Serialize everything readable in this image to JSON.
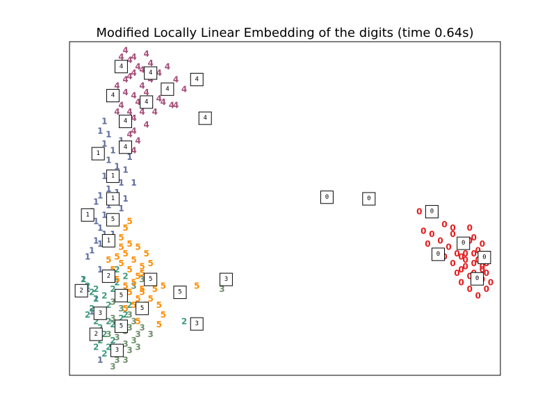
{
  "chart_data": {
    "type": "scatter",
    "title": "Modified Locally Linear Embedding of the digits (time 0.64s)",
    "xlabel": "",
    "ylabel": "",
    "xlim": [
      0,
      1
    ],
    "ylim": [
      0,
      1
    ],
    "grid": false,
    "legend": "none",
    "colors": {
      "0": "#e41a1c",
      "1": "#5b6b9e",
      "2": "#3c9a7a",
      "3": "#6e8f6a",
      "4": "#a6507a",
      "5": "#ff8c00"
    },
    "series": [
      {
        "label": "0",
        "points": [
          [
            0.82,
            0.49
          ],
          [
            0.86,
            0.48
          ],
          [
            0.88,
            0.45
          ],
          [
            0.9,
            0.42
          ],
          [
            0.92,
            0.4
          ],
          [
            0.93,
            0.38
          ],
          [
            0.94,
            0.4
          ],
          [
            0.95,
            0.36
          ],
          [
            0.96,
            0.34
          ],
          [
            0.97,
            0.32
          ],
          [
            0.98,
            0.3
          ],
          [
            0.97,
            0.28
          ],
          [
            0.95,
            0.3
          ],
          [
            0.93,
            0.34
          ],
          [
            0.91,
            0.36
          ],
          [
            0.89,
            0.38
          ],
          [
            0.87,
            0.4
          ],
          [
            0.85,
            0.42
          ],
          [
            0.88,
            0.35
          ],
          [
            0.9,
            0.33
          ],
          [
            0.92,
            0.31
          ],
          [
            0.94,
            0.29
          ],
          [
            0.96,
            0.27
          ],
          [
            0.98,
            0.25
          ],
          [
            0.99,
            0.27
          ],
          [
            0.96,
            0.23
          ],
          [
            0.94,
            0.25
          ],
          [
            0.92,
            0.27
          ],
          [
            0.91,
            0.3
          ],
          [
            0.93,
            0.36
          ],
          [
            0.95,
            0.41
          ],
          [
            0.97,
            0.39
          ],
          [
            0.94,
            0.44
          ],
          [
            0.9,
            0.44
          ],
          [
            0.86,
            0.36
          ],
          [
            0.84,
            0.39
          ],
          [
            0.83,
            0.43
          ],
          [
            0.95,
            0.33
          ],
          [
            0.97,
            0.31
          ],
          [
            0.93,
            0.32
          ],
          [
            0.92,
            0.35
          ],
          [
            0.96,
            0.37
          ],
          [
            0.98,
            0.33
          ]
        ]
      },
      {
        "label": "1",
        "points": [
          [
            0.07,
            0.77
          ],
          [
            0.06,
            0.74
          ],
          [
            0.08,
            0.73
          ],
          [
            0.07,
            0.7
          ],
          [
            0.09,
            0.68
          ],
          [
            0.08,
            0.65
          ],
          [
            0.1,
            0.63
          ],
          [
            0.09,
            0.6
          ],
          [
            0.11,
            0.58
          ],
          [
            0.1,
            0.55
          ],
          [
            0.12,
            0.53
          ],
          [
            0.11,
            0.5
          ],
          [
            0.09,
            0.52
          ],
          [
            0.08,
            0.56
          ],
          [
            0.07,
            0.6
          ],
          [
            0.06,
            0.54
          ],
          [
            0.05,
            0.52
          ],
          [
            0.04,
            0.49
          ],
          [
            0.05,
            0.46
          ],
          [
            0.06,
            0.44
          ],
          [
            0.07,
            0.42
          ],
          [
            0.05,
            0.4
          ],
          [
            0.04,
            0.37
          ],
          [
            0.03,
            0.35
          ],
          [
            0.02,
            0.28
          ],
          [
            0.03,
            0.25
          ],
          [
            0.05,
            0.22
          ],
          [
            0.04,
            0.18
          ],
          [
            0.06,
            0.03
          ],
          [
            0.09,
            0.42
          ],
          [
            0.1,
            0.47
          ],
          [
            0.13,
            0.66
          ],
          [
            0.11,
            0.71
          ],
          [
            0.08,
            0.51
          ],
          [
            0.07,
            0.48
          ],
          [
            0.06,
            0.39
          ],
          [
            0.12,
            0.62
          ],
          [
            0.14,
            0.58
          ],
          [
            0.06,
            0.31
          ]
        ]
      },
      {
        "label": "2",
        "points": [
          [
            0.02,
            0.28
          ],
          [
            0.03,
            0.26
          ],
          [
            0.04,
            0.24
          ],
          [
            0.05,
            0.22
          ],
          [
            0.04,
            0.19
          ],
          [
            0.03,
            0.17
          ],
          [
            0.05,
            0.15
          ],
          [
            0.06,
            0.13
          ],
          [
            0.07,
            0.11
          ],
          [
            0.06,
            0.09
          ],
          [
            0.08,
            0.07
          ],
          [
            0.07,
            0.05
          ],
          [
            0.05,
            0.07
          ],
          [
            0.04,
            0.12
          ],
          [
            0.06,
            0.18
          ],
          [
            0.08,
            0.2
          ],
          [
            0.07,
            0.23
          ],
          [
            0.09,
            0.25
          ],
          [
            0.1,
            0.27
          ],
          [
            0.11,
            0.22
          ],
          [
            0.12,
            0.17
          ],
          [
            0.09,
            0.14
          ],
          [
            0.13,
            0.2
          ],
          [
            0.11,
            0.16
          ],
          [
            0.12,
            0.29
          ],
          [
            0.1,
            0.31
          ],
          [
            0.09,
            0.09
          ],
          [
            0.26,
            0.15
          ],
          [
            0.08,
            0.15
          ],
          [
            0.05,
            0.25
          ]
        ]
      },
      {
        "label": "3",
        "points": [
          [
            0.07,
            0.18
          ],
          [
            0.09,
            0.16
          ],
          [
            0.11,
            0.14
          ],
          [
            0.12,
            0.12
          ],
          [
            0.1,
            0.1
          ],
          [
            0.12,
            0.08
          ],
          [
            0.11,
            0.05
          ],
          [
            0.1,
            0.03
          ],
          [
            0.13,
            0.06
          ],
          [
            0.14,
            0.09
          ],
          [
            0.15,
            0.11
          ],
          [
            0.13,
            0.13
          ],
          [
            0.11,
            0.19
          ],
          [
            0.09,
            0.21
          ],
          [
            0.08,
            0.11
          ],
          [
            0.09,
            0.07
          ],
          [
            0.09,
            0.01
          ],
          [
            0.12,
            0.03
          ],
          [
            0.15,
            0.07
          ],
          [
            0.14,
            0.15
          ],
          [
            0.16,
            0.13
          ],
          [
            0.18,
            0.11
          ],
          [
            0.12,
            0.24
          ],
          [
            0.14,
            0.26
          ],
          [
            0.16,
            0.28
          ],
          [
            0.35,
            0.25
          ],
          [
            0.15,
            0.19
          ],
          [
            0.13,
            0.17
          ]
        ]
      },
      {
        "label": "4",
        "points": [
          [
            0.12,
            0.99
          ],
          [
            0.11,
            0.97
          ],
          [
            0.13,
            0.96
          ],
          [
            0.15,
            0.94
          ],
          [
            0.14,
            0.92
          ],
          [
            0.12,
            0.9
          ],
          [
            0.1,
            0.88
          ],
          [
            0.12,
            0.86
          ],
          [
            0.14,
            0.85
          ],
          [
            0.16,
            0.88
          ],
          [
            0.18,
            0.9
          ],
          [
            0.2,
            0.92
          ],
          [
            0.22,
            0.94
          ],
          [
            0.24,
            0.9
          ],
          [
            0.26,
            0.87
          ],
          [
            0.29,
            0.89
          ],
          [
            0.22,
            0.86
          ],
          [
            0.2,
            0.84
          ],
          [
            0.18,
            0.82
          ],
          [
            0.16,
            0.8
          ],
          [
            0.14,
            0.78
          ],
          [
            0.12,
            0.76
          ],
          [
            0.13,
            0.73
          ],
          [
            0.15,
            0.71
          ],
          [
            0.14,
            0.68
          ],
          [
            0.11,
            0.82
          ],
          [
            0.1,
            0.8
          ],
          [
            0.13,
            0.8
          ],
          [
            0.17,
            0.86
          ],
          [
            0.19,
            0.8
          ],
          [
            0.21,
            0.83
          ],
          [
            0.23,
            0.82
          ],
          [
            0.24,
            0.82
          ],
          [
            0.13,
            0.91
          ],
          [
            0.16,
            0.93
          ],
          [
            0.18,
            0.95
          ],
          [
            0.14,
            0.97
          ],
          [
            0.17,
            0.98
          ],
          [
            0.11,
            0.93
          ],
          [
            0.09,
            0.85
          ],
          [
            0.15,
            0.83
          ],
          [
            0.17,
            0.76
          ],
          [
            0.14,
            0.74
          ]
        ]
      },
      {
        "label": "5",
        "points": [
          [
            0.12,
            0.44
          ],
          [
            0.11,
            0.41
          ],
          [
            0.13,
            0.39
          ],
          [
            0.12,
            0.36
          ],
          [
            0.14,
            0.34
          ],
          [
            0.13,
            0.31
          ],
          [
            0.15,
            0.29
          ],
          [
            0.14,
            0.27
          ],
          [
            0.16,
            0.25
          ],
          [
            0.15,
            0.22
          ],
          [
            0.13,
            0.24
          ],
          [
            0.11,
            0.33
          ],
          [
            0.1,
            0.35
          ],
          [
            0.09,
            0.31
          ],
          [
            0.08,
            0.34
          ],
          [
            0.1,
            0.28
          ],
          [
            0.12,
            0.26
          ],
          [
            0.16,
            0.32
          ],
          [
            0.17,
            0.28
          ],
          [
            0.18,
            0.33
          ],
          [
            0.19,
            0.25
          ],
          [
            0.17,
            0.36
          ],
          [
            0.15,
            0.38
          ],
          [
            0.13,
            0.46
          ],
          [
            0.16,
            0.3
          ],
          [
            0.18,
            0.22
          ],
          [
            0.2,
            0.2
          ],
          [
            0.15,
            0.15
          ],
          [
            0.12,
            0.19
          ],
          [
            0.14,
            0.2
          ],
          [
            0.21,
            0.26
          ],
          [
            0.17,
            0.2
          ],
          [
            0.2,
            0.14
          ],
          [
            0.21,
            0.17
          ],
          [
            0.29,
            0.26
          ],
          [
            0.16,
            0.24
          ],
          [
            0.11,
            0.38
          ]
        ]
      }
    ],
    "thumbnails": [
      {
        "label": "4",
        "x": 0.11,
        "y": 0.94
      },
      {
        "label": "4",
        "x": 0.18,
        "y": 0.92
      },
      {
        "label": "4",
        "x": 0.29,
        "y": 0.9
      },
      {
        "label": "4",
        "x": 0.22,
        "y": 0.87
      },
      {
        "label": "4",
        "x": 0.09,
        "y": 0.85
      },
      {
        "label": "4",
        "x": 0.17,
        "y": 0.83
      },
      {
        "label": "4",
        "x": 0.31,
        "y": 0.78
      },
      {
        "label": "4",
        "x": 0.12,
        "y": 0.77
      },
      {
        "label": "4",
        "x": 0.12,
        "y": 0.69
      },
      {
        "label": "1",
        "x": 0.055,
        "y": 0.67
      },
      {
        "label": "1",
        "x": 0.09,
        "y": 0.6
      },
      {
        "label": "1",
        "x": 0.09,
        "y": 0.53
      },
      {
        "label": "1",
        "x": 0.03,
        "y": 0.48
      },
      {
        "label": "5",
        "x": 0.09,
        "y": 0.465
      },
      {
        "label": "1",
        "x": 0.08,
        "y": 0.4
      },
      {
        "label": "2",
        "x": 0.08,
        "y": 0.29
      },
      {
        "label": "5",
        "x": 0.18,
        "y": 0.28
      },
      {
        "label": "3",
        "x": 0.36,
        "y": 0.28
      },
      {
        "label": "2",
        "x": 0.015,
        "y": 0.245
      },
      {
        "label": "5",
        "x": 0.11,
        "y": 0.23
      },
      {
        "label": "5",
        "x": 0.25,
        "y": 0.24
      },
      {
        "label": "5",
        "x": 0.16,
        "y": 0.19
      },
      {
        "label": "3",
        "x": 0.06,
        "y": 0.175
      },
      {
        "label": "5",
        "x": 0.11,
        "y": 0.135
      },
      {
        "label": "3",
        "x": 0.29,
        "y": 0.142
      },
      {
        "label": "2",
        "x": 0.05,
        "y": 0.11
      },
      {
        "label": "3",
        "x": 0.1,
        "y": 0.06
      },
      {
        "label": "0",
        "x": 0.6,
        "y": 0.535
      },
      {
        "label": "0",
        "x": 0.7,
        "y": 0.53
      },
      {
        "label": "0",
        "x": 0.85,
        "y": 0.49
      },
      {
        "label": "0",
        "x": 0.925,
        "y": 0.392
      },
      {
        "label": "0",
        "x": 0.865,
        "y": 0.358
      },
      {
        "label": "0",
        "x": 0.975,
        "y": 0.348
      },
      {
        "label": "0",
        "x": 0.958,
        "y": 0.282
      }
    ]
  }
}
